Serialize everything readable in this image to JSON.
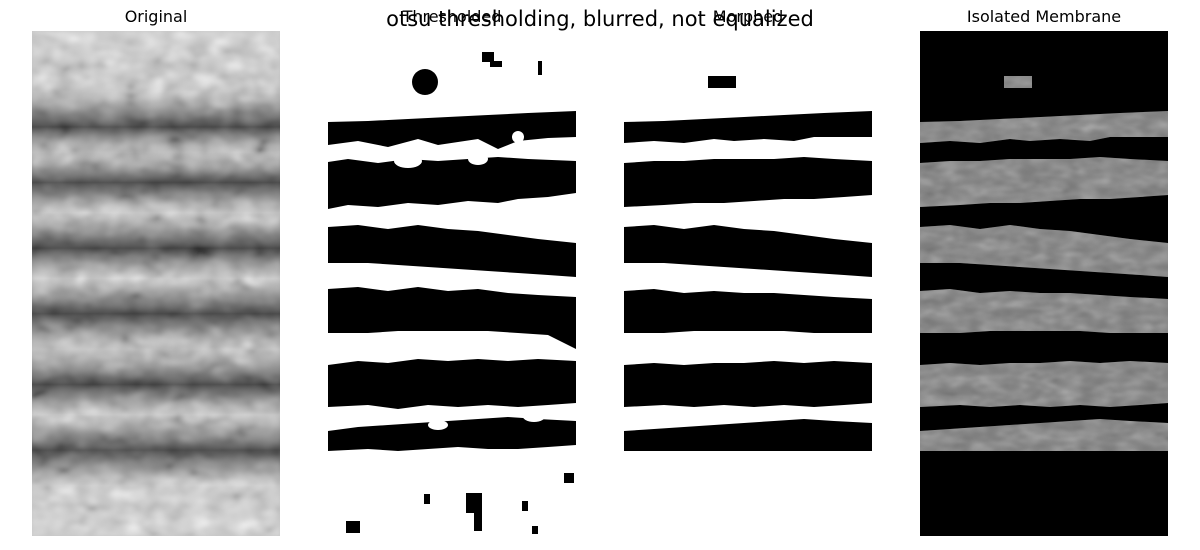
{
  "figure": {
    "suptitle": "otsu thresholding, blurred, not equalized"
  },
  "panels": [
    {
      "title": "Original"
    },
    {
      "title": "Thresholded"
    },
    {
      "title": "Morphed"
    },
    {
      "title": "Isolated Membrane"
    }
  ],
  "colors": {
    "background": "#ffffff",
    "foreground": "#000000",
    "membrane_gray": "#7a7a7a"
  }
}
